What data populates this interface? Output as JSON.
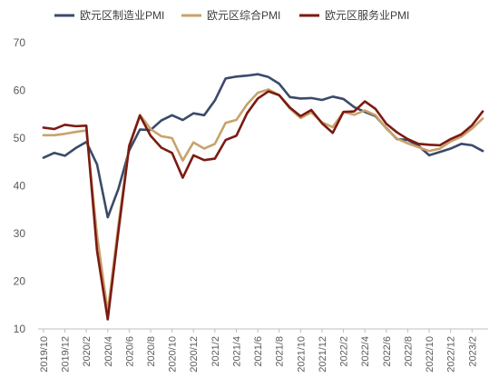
{
  "chart_data": {
    "type": "line",
    "title": "",
    "xlabel": "",
    "ylabel": "",
    "ylim": [
      10,
      70
    ],
    "yticks": [
      10,
      20,
      30,
      40,
      50,
      60,
      70
    ],
    "grid": false,
    "legend_position": "top",
    "x": [
      "2019/10",
      "2019/11",
      "2019/12",
      "2020/1",
      "2020/2",
      "2020/3",
      "2020/4",
      "2020/5",
      "2020/6",
      "2020/7",
      "2020/8",
      "2020/9",
      "2020/10",
      "2020/11",
      "2020/12",
      "2021/1",
      "2021/2",
      "2021/3",
      "2021/4",
      "2021/5",
      "2021/6",
      "2021/7",
      "2021/8",
      "2021/9",
      "2021/10",
      "2021/11",
      "2021/12",
      "2022/1",
      "2022/2",
      "2022/3",
      "2022/4",
      "2022/5",
      "2022/6",
      "2022/7",
      "2022/8",
      "2022/9",
      "2022/10",
      "2022/11",
      "2022/12",
      "2023/1",
      "2023/2",
      "2023/3"
    ],
    "xtick_labels": [
      "2019/10",
      "2019/12",
      "2020/2",
      "2020/4",
      "2020/6",
      "2020/8",
      "2020/10",
      "2020/12",
      "2021/2",
      "2021/4",
      "2021/6",
      "2021/8",
      "2021/10",
      "2021/12",
      "2022/2",
      "2022/4",
      "2022/6",
      "2022/8",
      "2022/10",
      "2022/12",
      "2023/2"
    ],
    "series": [
      {
        "name": "欧元区制造业PMI",
        "color": "#3b4a6b",
        "values": [
          45.9,
          46.9,
          46.3,
          47.9,
          49.2,
          44.5,
          33.4,
          39.4,
          47.4,
          51.8,
          51.7,
          53.7,
          54.8,
          53.8,
          55.2,
          54.8,
          57.9,
          62.5,
          62.9,
          63.1,
          63.4,
          62.8,
          61.4,
          58.6,
          58.3,
          58.4,
          58.0,
          58.7,
          58.2,
          56.5,
          55.5,
          54.6,
          52.1,
          49.8,
          49.6,
          48.4,
          46.4,
          47.1,
          47.8,
          48.8,
          48.5,
          47.3
        ]
      },
      {
        "name": "欧元区综合PMI",
        "color": "#c9a26b",
        "values": [
          50.6,
          50.6,
          50.9,
          51.3,
          51.6,
          29.7,
          13.6,
          31.9,
          48.5,
          54.9,
          51.9,
          50.4,
          50.0,
          45.3,
          49.1,
          47.8,
          48.8,
          53.2,
          53.8,
          57.1,
          59.5,
          60.2,
          59.0,
          56.2,
          54.2,
          55.4,
          53.3,
          52.3,
          55.5,
          54.9,
          55.8,
          54.8,
          52.0,
          49.9,
          48.9,
          48.1,
          47.3,
          47.8,
          49.3,
          50.3,
          52.0,
          54.1
        ]
      },
      {
        "name": "欧元区服务业PMI",
        "color": "#7b1a12",
        "values": [
          52.2,
          51.9,
          52.8,
          52.5,
          52.6,
          26.4,
          12.0,
          30.5,
          48.3,
          54.7,
          50.5,
          48.0,
          46.9,
          41.7,
          46.4,
          45.4,
          45.7,
          49.6,
          50.5,
          55.2,
          58.3,
          59.8,
          59.0,
          56.4,
          54.6,
          55.9,
          53.1,
          51.1,
          55.5,
          55.6,
          57.7,
          56.1,
          53.0,
          51.2,
          49.8,
          48.8,
          48.6,
          48.5,
          49.8,
          50.8,
          52.7,
          55.6
        ]
      }
    ]
  }
}
